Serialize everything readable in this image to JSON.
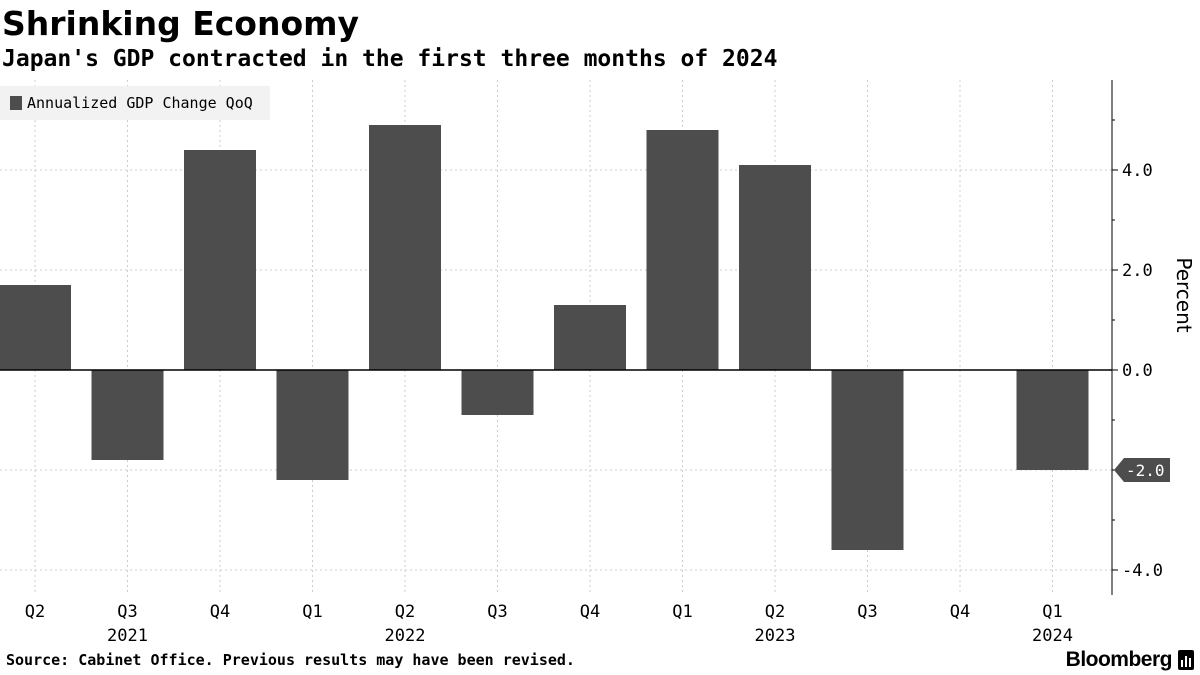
{
  "header": {
    "title": "Shrinking Economy",
    "subtitle": "Japan's GDP contracted in the first three months of 2024"
  },
  "footer": {
    "source": "Source: Cabinet Office. Previous results may have been revised.",
    "brand": "Bloomberg",
    "brand_icon": "bloomberg-bars-icon"
  },
  "colors": {
    "bar": "#4d4d4d",
    "grid": "#cccccc",
    "axis": "#000000",
    "legend_bg": "#f2f2f2",
    "callout_bg": "#4d4d4d"
  },
  "chart_data": {
    "type": "bar",
    "title": "Shrinking Economy",
    "subtitle": "Japan's GDP contracted in the first three months of 2024",
    "categories": [
      "Q2",
      "Q3",
      "Q4",
      "Q1",
      "Q2",
      "Q3",
      "Q4",
      "Q1",
      "Q2",
      "Q3",
      "Q4",
      "Q1"
    ],
    "year_labels": [
      {
        "category_index": 1,
        "label": "2021"
      },
      {
        "category_index": 4,
        "label": "2022"
      },
      {
        "category_index": 8,
        "label": "2023"
      },
      {
        "category_index": 11,
        "label": "2024"
      }
    ],
    "series": [
      {
        "name": "Annualized GDP Change QoQ",
        "values": [
          1.7,
          -1.8,
          4.4,
          -2.2,
          4.9,
          -0.9,
          1.3,
          4.8,
          4.1,
          -3.6,
          0.0,
          -2.0
        ]
      }
    ],
    "xlabel": "",
    "ylabel": "Percent",
    "y_axis_position": "right",
    "ylim": [
      -4.5,
      5.8
    ],
    "yticks": [
      -4.0,
      -2.0,
      0.0,
      2.0,
      4.0
    ],
    "ytick_labels": [
      "-4.0",
      "-2.0",
      "0.0",
      "2.0",
      "4.0"
    ],
    "grid": true,
    "legend": "top-left",
    "last_value_label": "-2.0"
  }
}
